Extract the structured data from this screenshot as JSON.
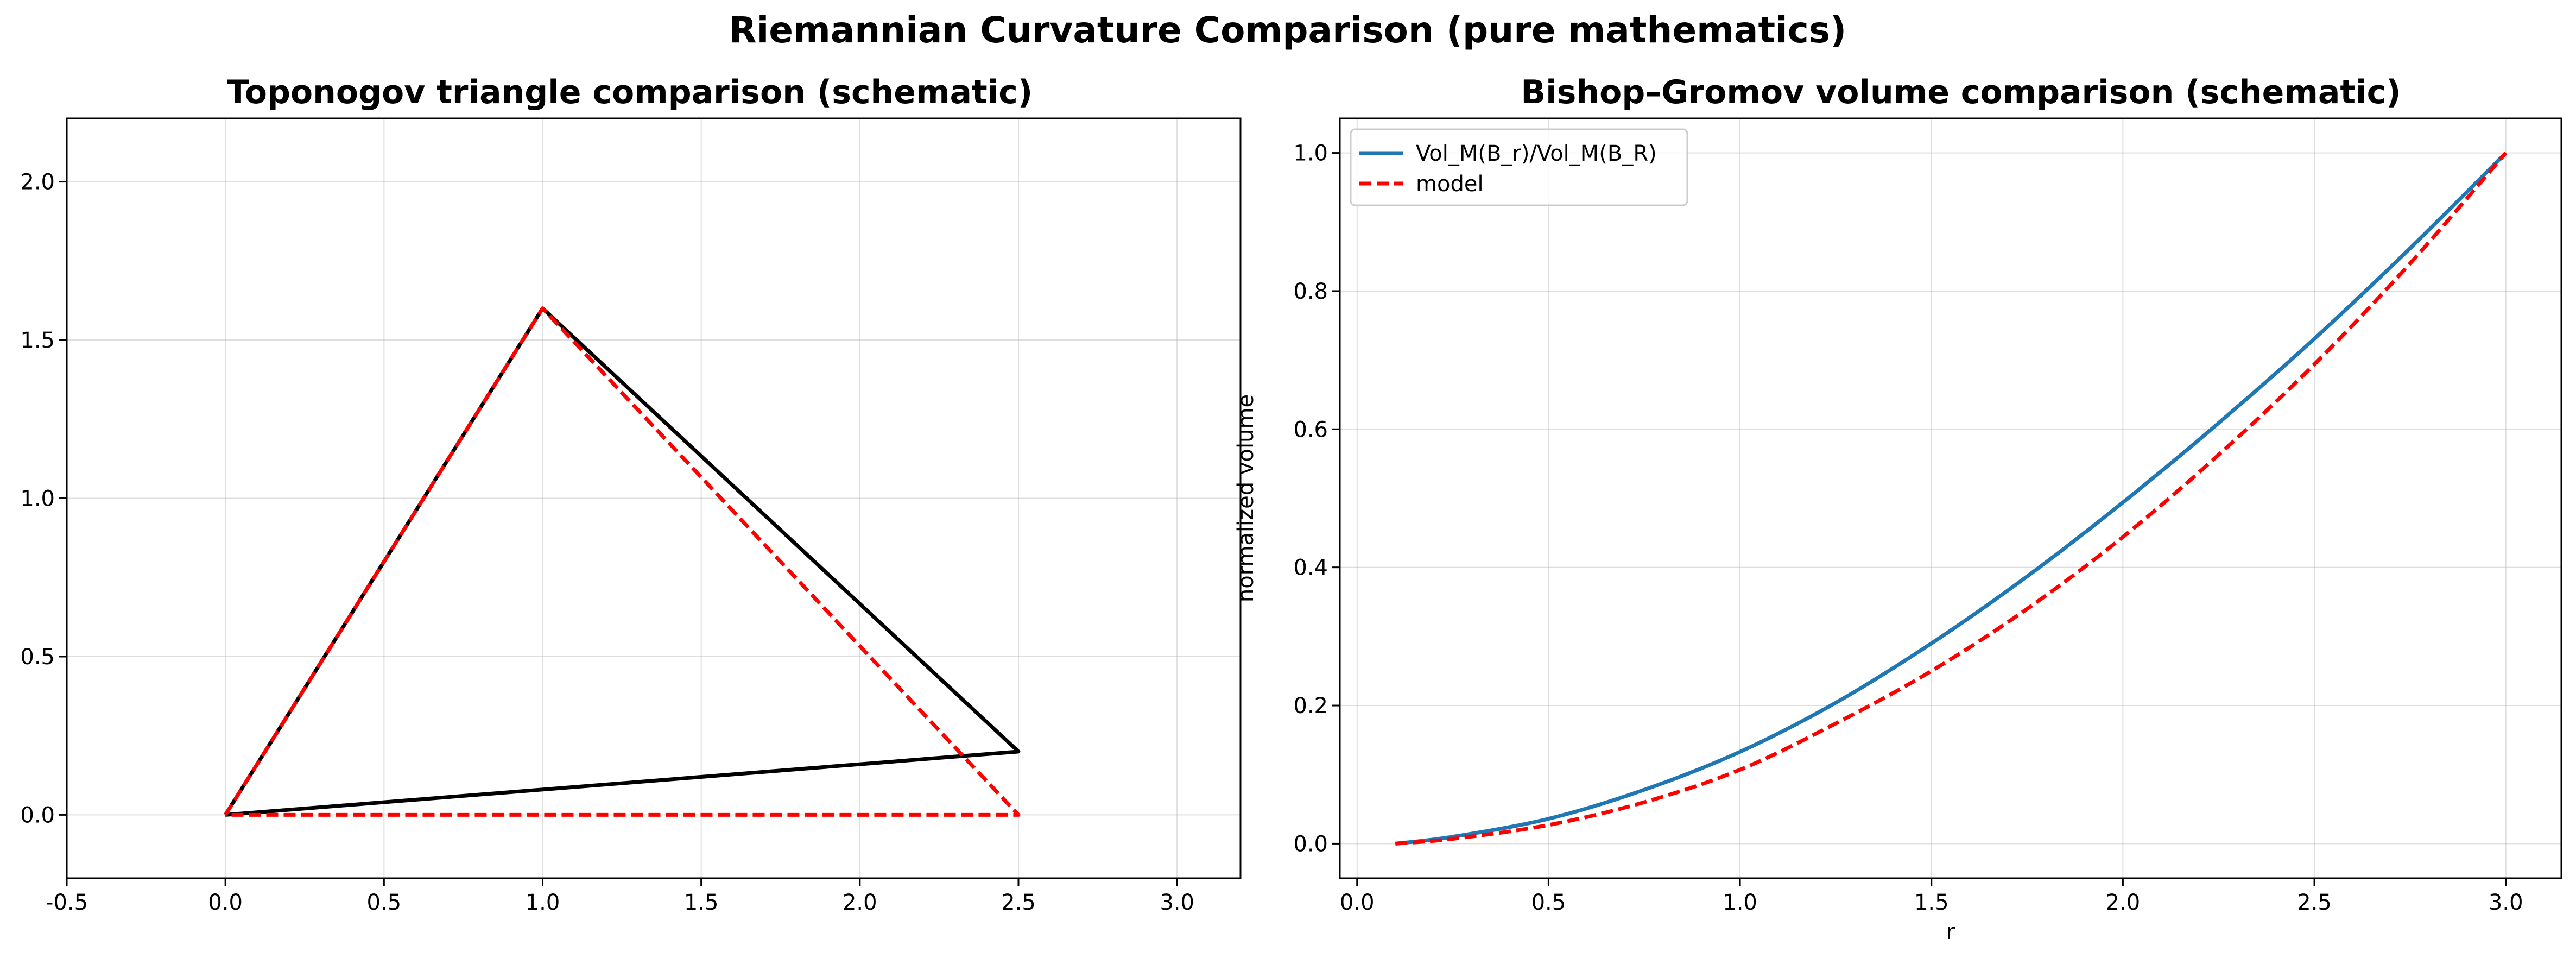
{
  "figure": {
    "title": "Riemannian Curvature Comparison (pure mathematics)"
  },
  "chart_data": [
    {
      "type": "line",
      "title": "Toponogov triangle comparison (schematic)",
      "xlabel": "",
      "ylabel": "",
      "xlim": [
        -0.5,
        3.2
      ],
      "ylim": [
        -0.2,
        2.2
      ],
      "xticks": [
        -0.5,
        0.0,
        0.5,
        1.0,
        1.5,
        2.0,
        2.5,
        3.0
      ],
      "yticks": [
        0.0,
        0.5,
        1.0,
        1.5,
        2.0
      ],
      "grid": true,
      "legend": "none",
      "series": [
        {
          "style": "solid",
          "color": "#000000",
          "x": [
            0.0,
            1.0,
            2.5,
            0.0
          ],
          "y": [
            0.0,
            1.6,
            0.2,
            0.0
          ]
        },
        {
          "style": "dashed",
          "color": "#ff0000",
          "x": [
            0.0,
            1.0,
            2.5,
            0.0
          ],
          "y": [
            0.0,
            1.6,
            0.0,
            0.0
          ]
        }
      ]
    },
    {
      "type": "line",
      "title": "Bishop–Gromov volume comparison (schematic)",
      "xlabel": "r",
      "ylabel": "normalized volume",
      "xlim": [
        -0.045,
        3.145
      ],
      "ylim": [
        -0.05,
        1.05
      ],
      "xticks": [
        0.0,
        0.5,
        1.0,
        1.5,
        2.0,
        2.5,
        3.0
      ],
      "yticks": [
        0.0,
        0.2,
        0.4,
        0.6,
        0.8,
        1.0
      ],
      "grid": true,
      "legend": "top-left",
      "series": [
        {
          "name": "Vol_M(B_r)/Vol_M(B_R)",
          "style": "solid",
          "color": "#1f77b4",
          "x": [
            0.1,
            0.25,
            0.5,
            0.75,
            1.0,
            1.25,
            1.5,
            1.75,
            2.0,
            2.25,
            2.5,
            2.75,
            3.0
          ],
          "y": [
            0.0,
            0.01,
            0.036,
            0.078,
            0.133,
            0.204,
            0.29,
            0.387,
            0.494,
            0.609,
            0.731,
            0.862,
            1.0
          ]
        },
        {
          "name": "model",
          "style": "dashed",
          "color": "#ff0000",
          "x": [
            0.1,
            0.25,
            0.5,
            0.75,
            1.0,
            1.25,
            1.5,
            1.75,
            2.0,
            2.25,
            2.5,
            2.75,
            3.0
          ],
          "y": [
            0.0,
            0.007,
            0.027,
            0.06,
            0.107,
            0.174,
            0.25,
            0.34,
            0.444,
            0.563,
            0.694,
            0.84,
            1.0
          ]
        }
      ]
    }
  ]
}
